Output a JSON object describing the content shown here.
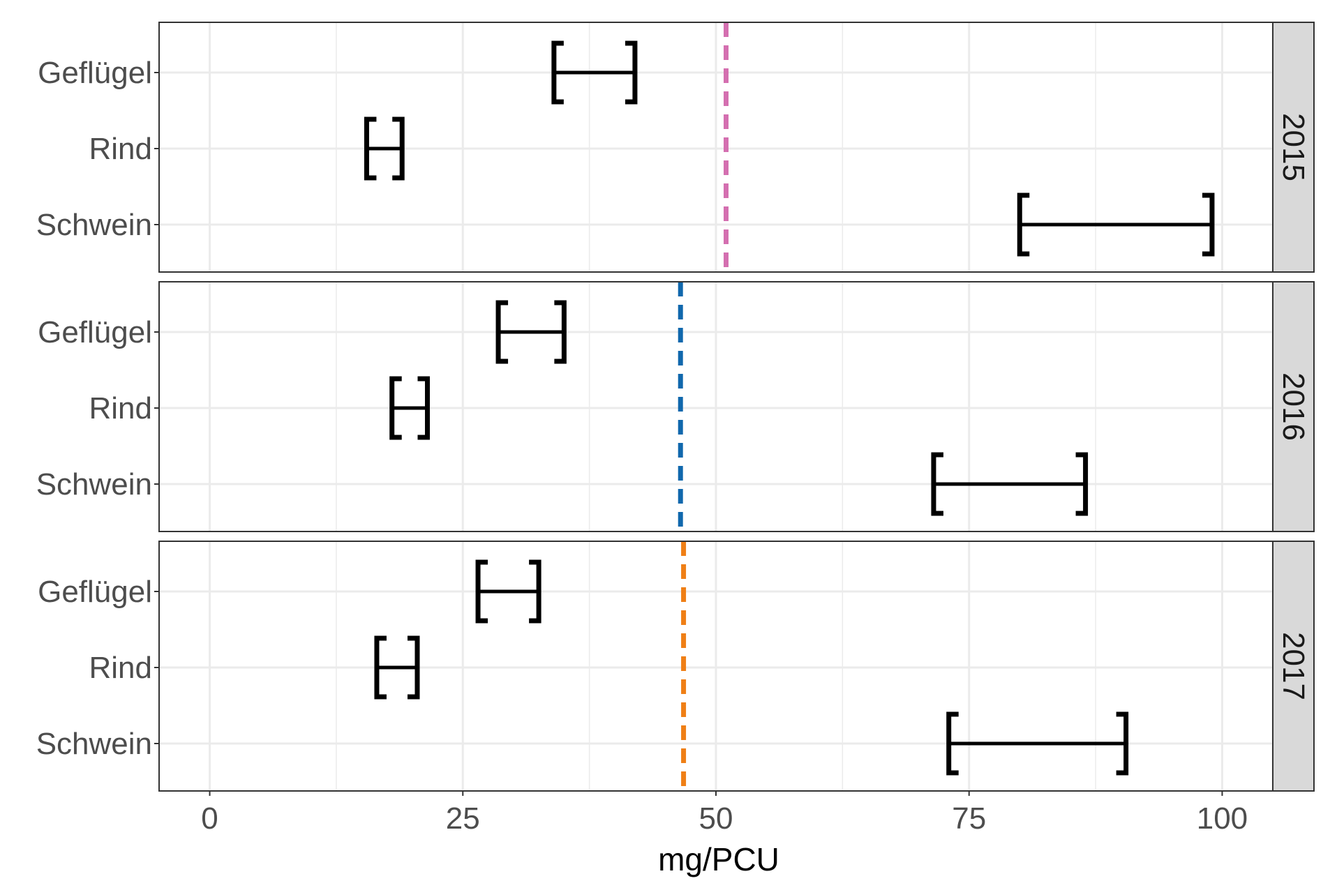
{
  "chart_data": {
    "type": "interval",
    "xlabel": "mg/PCU",
    "ylabel": "",
    "xlim": [
      -5,
      105
    ],
    "x_ticks": [
      0,
      25,
      50,
      75,
      100
    ],
    "x_minor_gridlines": [
      12.5,
      37.5,
      62.5,
      87.5
    ],
    "grid": true,
    "categories": [
      "Geflügel",
      "Rind",
      "Schwein"
    ],
    "facets": [
      {
        "label": "2015",
        "reference_line": {
          "value": 51,
          "color": "#d46fb0",
          "style": "dashed"
        },
        "intervals": [
          {
            "category": "Geflügel",
            "low": 34,
            "high": 42
          },
          {
            "category": "Rind",
            "low": 15.5,
            "high": 19
          },
          {
            "category": "Schwein",
            "low": 80,
            "high": 99
          }
        ]
      },
      {
        "label": "2016",
        "reference_line": {
          "value": 46.5,
          "color": "#1068ad",
          "style": "dashed"
        },
        "intervals": [
          {
            "category": "Geflügel",
            "low": 28.5,
            "high": 35
          },
          {
            "category": "Rind",
            "low": 18,
            "high": 21.5
          },
          {
            "category": "Schwein",
            "low": 71.5,
            "high": 86.5
          }
        ]
      },
      {
        "label": "2017",
        "reference_line": {
          "value": 46.8,
          "color": "#ef7f16",
          "style": "dashed"
        },
        "intervals": [
          {
            "category": "Geflügel",
            "low": 26.5,
            "high": 32.5
          },
          {
            "category": "Rind",
            "low": 16.5,
            "high": 20.5
          },
          {
            "category": "Schwein",
            "low": 73,
            "high": 90.5
          }
        ]
      }
    ]
  }
}
